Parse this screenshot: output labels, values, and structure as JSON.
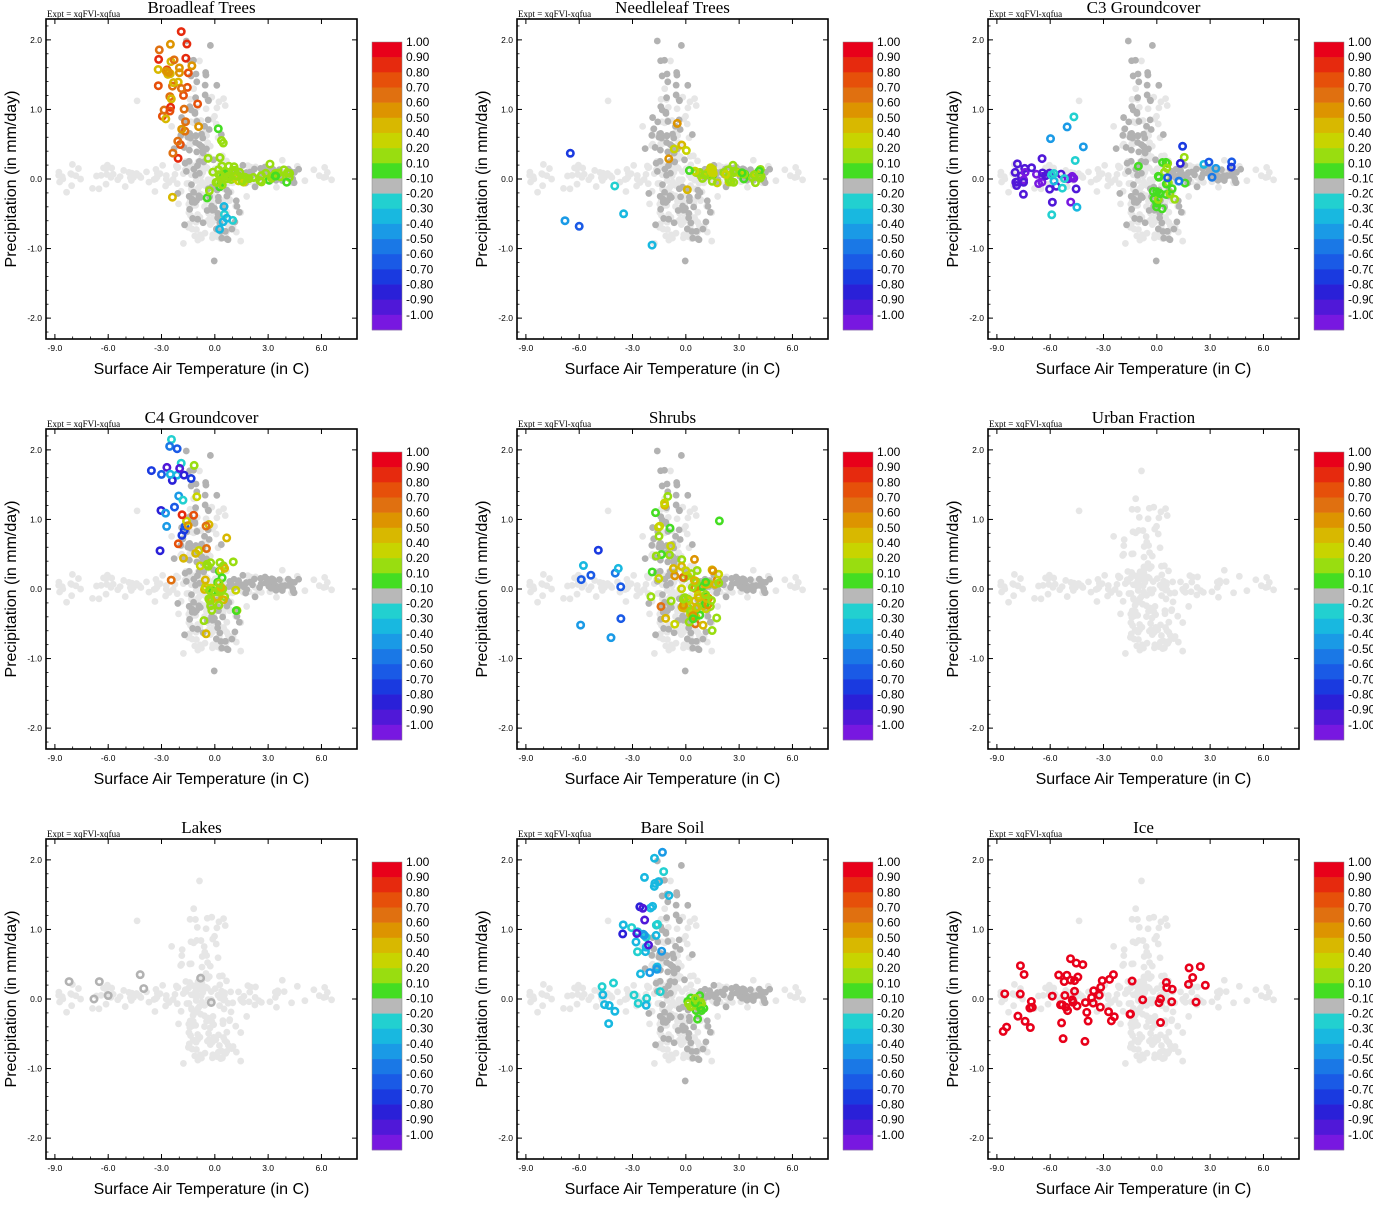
{
  "figure": {
    "expt_label": "Expt = xqFVl-xqfua",
    "xlabel": "Surface Air Temperature (in C)",
    "ylabel": "Precipitation (in mm/day)",
    "x_ticks": [
      "-9.0",
      "-6.0",
      "-3.0",
      "0.0",
      "3.0",
      "6.0"
    ],
    "x_tick_values": [
      -9,
      -6,
      -3,
      0,
      3,
      6
    ],
    "y_ticks": [
      "2.0",
      "1.0",
      "0.0",
      "-1.0",
      "-2.0"
    ],
    "y_tick_values": [
      2,
      1,
      0,
      -1,
      -2
    ],
    "xlim": [
      -9.5,
      8
    ],
    "ylim": [
      -2.3,
      2.3
    ],
    "colorbar": {
      "labels": [
        "1.00",
        "0.90",
        "0.80",
        "0.70",
        "0.60",
        "0.50",
        "0.40",
        "0.20",
        "0.10",
        "-0.10",
        "-0.20",
        "-0.30",
        "-0.40",
        "-0.50",
        "-0.60",
        "-0.70",
        "-0.80",
        "-0.90",
        "-1.00"
      ],
      "colors": [
        "#e8001a",
        "#e62a0e",
        "#e6500a",
        "#e07010",
        "#dd9400",
        "#d8b800",
        "#c8d400",
        "#99dd10",
        "#44dd22",
        "#b8b8b8",
        "#22d0d0",
        "#18b8e0",
        "#1a9ae6",
        "#1a78e6",
        "#1a5ae6",
        "#1a3ae0",
        "#2a20d8",
        "#5018d8",
        "#7818e0"
      ]
    },
    "background_color": "#e6e6e6"
  },
  "chart_data": [
    {
      "type": "scatter",
      "title": "Broadleaf Trees",
      "xlabel": "Surface Air Temperature (in C)",
      "ylabel": "Precipitation (in mm/day)",
      "xlim": [
        -9.5,
        8
      ],
      "ylim": [
        -2.3,
        2.3
      ],
      "highlight": "broadleaf"
    },
    {
      "type": "scatter",
      "title": "Needleleaf Trees",
      "xlabel": "Surface Air Temperature (in C)",
      "ylabel": "Precipitation (in mm/day)",
      "xlim": [
        -9.5,
        8
      ],
      "ylim": [
        -2.3,
        2.3
      ],
      "highlight": "needleleaf"
    },
    {
      "type": "scatter",
      "title": "C3 Groundcover",
      "xlabel": "Surface Air Temperature (in C)",
      "ylabel": "Precipitation (in mm/day)",
      "xlim": [
        -9.5,
        8
      ],
      "ylim": [
        -2.3,
        2.3
      ],
      "highlight": "c3"
    },
    {
      "type": "scatter",
      "title": "C4 Groundcover",
      "xlabel": "Surface Air Temperature (in C)",
      "ylabel": "Precipitation (in mm/day)",
      "xlim": [
        -9.5,
        8
      ],
      "ylim": [
        -2.3,
        2.3
      ],
      "highlight": "c4"
    },
    {
      "type": "scatter",
      "title": "Shrubs",
      "xlabel": "Surface Air Temperature (in C)",
      "ylabel": "Precipitation (in mm/day)",
      "xlim": [
        -9.5,
        8
      ],
      "ylim": [
        -2.3,
        2.3
      ],
      "highlight": "shrubs"
    },
    {
      "type": "scatter",
      "title": "Urban Fraction",
      "xlabel": "Surface Air Temperature (in C)",
      "ylabel": "Precipitation (in mm/day)",
      "xlim": [
        -9.5,
        8
      ],
      "ylim": [
        -2.3,
        2.3
      ],
      "highlight": "none"
    },
    {
      "type": "scatter",
      "title": "Lakes",
      "xlabel": "Surface Air Temperature (in C)",
      "ylabel": "Precipitation (in mm/day)",
      "xlim": [
        -9.5,
        8
      ],
      "ylim": [
        -2.3,
        2.3
      ],
      "highlight": "lakes"
    },
    {
      "type": "scatter",
      "title": "Bare Soil",
      "xlabel": "Surface Air Temperature (in C)",
      "ylabel": "Precipitation (in mm/day)",
      "xlim": [
        -9.5,
        8
      ],
      "ylim": [
        -2.3,
        2.3
      ],
      "highlight": "baresoil"
    },
    {
      "type": "scatter",
      "title": "Ice",
      "xlabel": "Surface Air Temperature (in C)",
      "ylabel": "Precipitation (in mm/day)",
      "xlim": [
        -9.5,
        8
      ],
      "ylim": [
        -2.3,
        2.3
      ],
      "highlight": "ice"
    }
  ]
}
